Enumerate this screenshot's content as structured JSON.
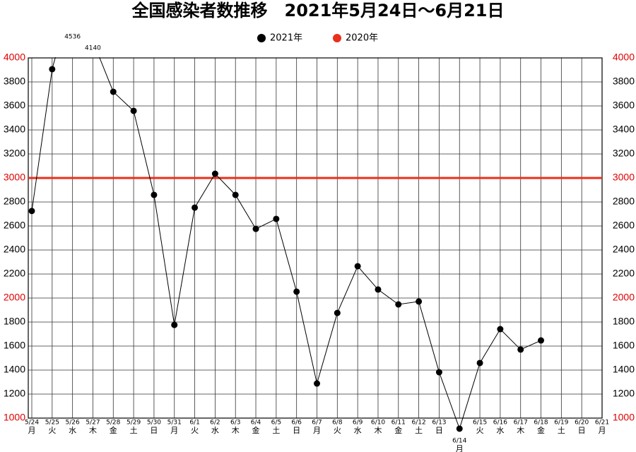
{
  "chart_data": {
    "type": "line",
    "title": "全国感染者数推移　2021年5月24日～6月21日",
    "categories": [
      "5/24",
      "5/25",
      "5/26",
      "5/27",
      "5/28",
      "5/29",
      "5/30",
      "5/31",
      "6/1",
      "6/2",
      "6/3",
      "6/4",
      "6/5",
      "6/6",
      "6/7",
      "6/8",
      "6/9",
      "6/10",
      "6/11",
      "6/12",
      "6/13",
      "6/14",
      "6/15",
      "6/16",
      "6/17",
      "6/18",
      "6/19",
      "6/20",
      "6/21"
    ],
    "weekdays": [
      "月",
      "火",
      "水",
      "木",
      "金",
      "土",
      "日",
      "月",
      "火",
      "水",
      "木",
      "金",
      "土",
      "日",
      "月",
      "火",
      "水",
      "木",
      "金",
      "土",
      "日",
      "月",
      "火",
      "水",
      "木",
      "金",
      "土",
      "日",
      "月"
    ],
    "series": [
      {
        "name": "2021年",
        "color": "#000000",
        "values": [
          2725,
          3906,
          4536,
          4140,
          3718,
          3559,
          2859,
          1776,
          2753,
          3035,
          2859,
          2576,
          2659,
          2053,
          1288,
          1876,
          2265,
          2071,
          1947,
          1971,
          1382,
          912,
          1459,
          1741,
          1571,
          1647,
          null,
          null,
          null
        ]
      },
      {
        "name": "2020年",
        "color": "#e8301c",
        "hline": 3000
      }
    ],
    "ylim": [
      1000,
      4000
    ],
    "yticks": [
      1000,
      1200,
      1400,
      1600,
      1800,
      2000,
      2200,
      2400,
      2600,
      2800,
      3000,
      3200,
      3400,
      3600,
      3800,
      4000
    ],
    "major_tick_color": "#e00000",
    "grid": true
  }
}
